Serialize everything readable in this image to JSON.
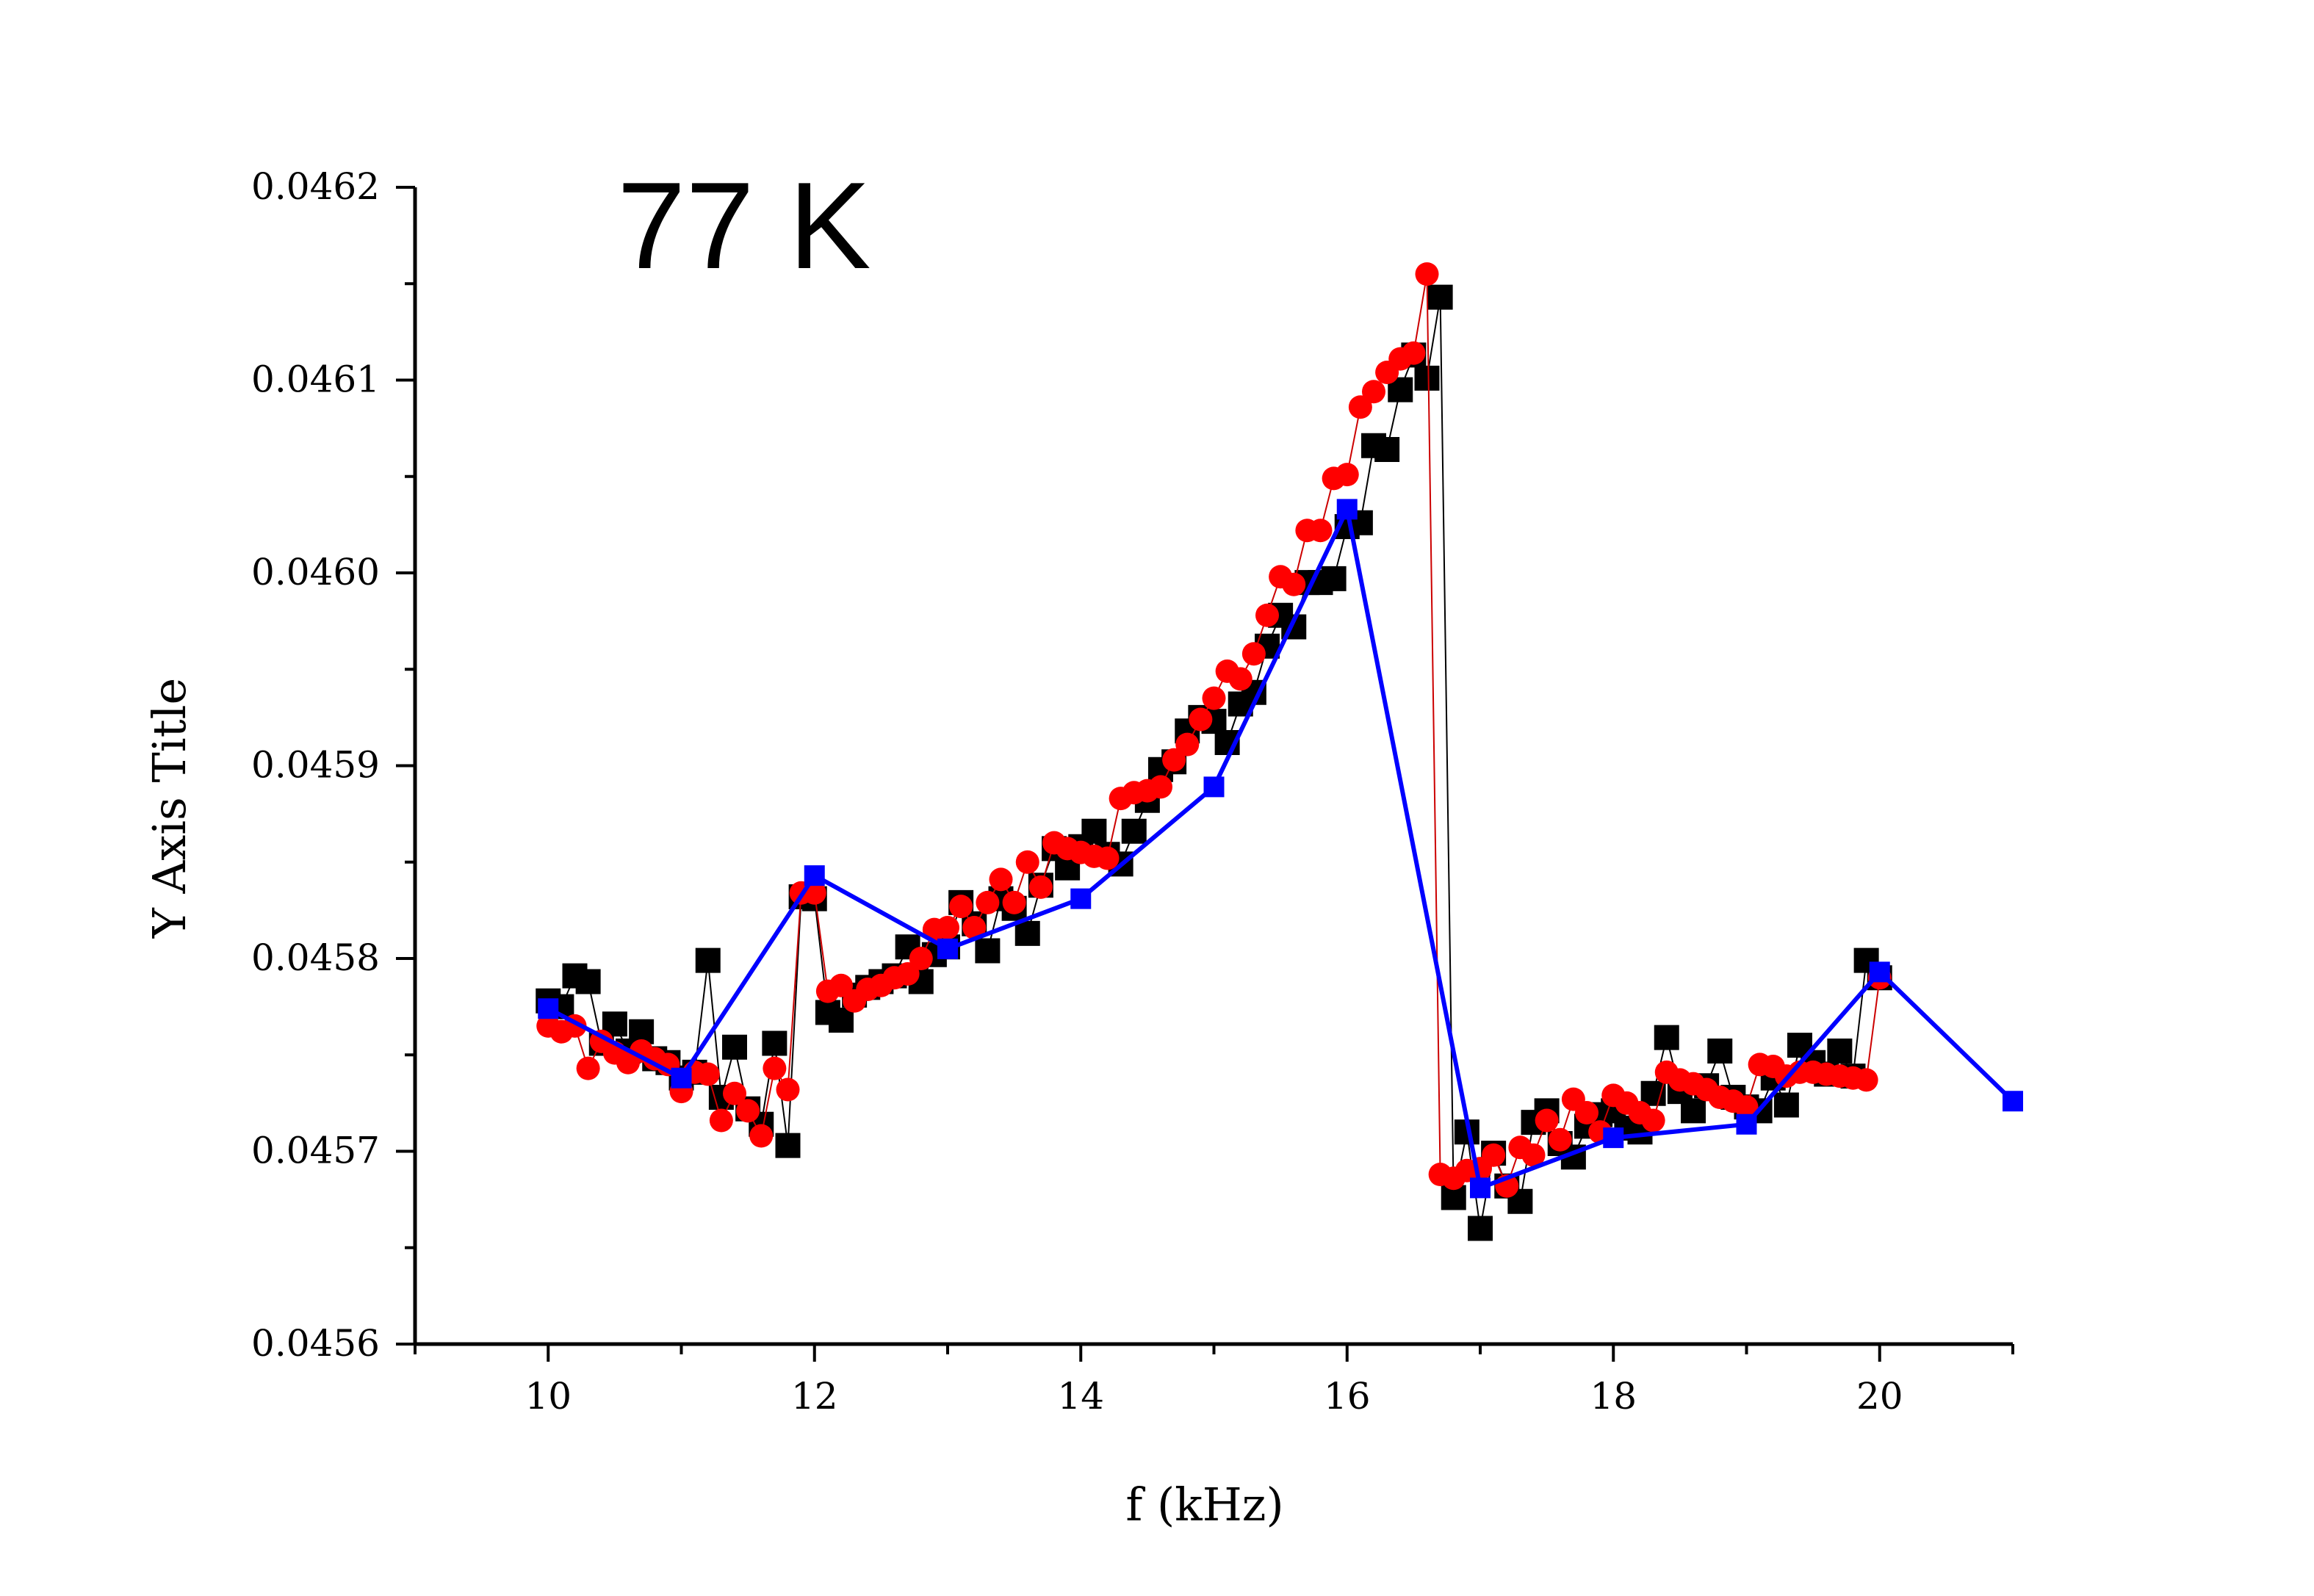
{
  "chart_data": {
    "type": "scatter",
    "title": "",
    "annotation": "77 K",
    "xlabel": "f (kHz)",
    "ylabel": "Y Axis Title",
    "xlim": [
      9,
      21
    ],
    "ylim": [
      0.0456,
      0.0462
    ],
    "x_ticks": [
      10,
      12,
      14,
      16,
      18,
      20
    ],
    "x_tick_labels": [
      "10",
      "12",
      "14",
      "16",
      "18",
      "20"
    ],
    "y_ticks": [
      0.0456,
      0.0457,
      0.0458,
      0.0459,
      0.046,
      0.0461,
      0.0462
    ],
    "y_tick_labels": [
      "0.0456",
      "0.0457",
      "0.0458",
      "0.0459",
      "0.0460",
      "0.0461",
      "0.0462"
    ],
    "grid": false,
    "legend": "none",
    "series": [
      {
        "marker": "square",
        "color": "#000000",
        "line_color": "#000000",
        "line_width": 2,
        "x": [
          10.0,
          10.1,
          10.2,
          10.3,
          10.4,
          10.5,
          10.6,
          10.7,
          10.8,
          10.9,
          11.0,
          11.1,
          11.2,
          11.3,
          11.4,
          11.5,
          11.6,
          11.7,
          11.8,
          11.9,
          12.0,
          12.1,
          12.2,
          12.3,
          12.4,
          12.5,
          12.6,
          12.7,
          12.8,
          12.9,
          13.0,
          13.1,
          13.2,
          13.3,
          13.4,
          13.5,
          13.6,
          13.7,
          13.8,
          13.9,
          14.0,
          14.1,
          14.2,
          14.3,
          14.4,
          14.5,
          14.6,
          14.7,
          14.8,
          14.9,
          15.0,
          15.1,
          15.2,
          15.3,
          15.4,
          15.5,
          15.6,
          15.7,
          15.8,
          15.9,
          16.0,
          16.1,
          16.2,
          16.3,
          16.4,
          16.5,
          16.6,
          16.7,
          16.8,
          16.9,
          17.0,
          17.1,
          17.2,
          17.3,
          17.4,
          17.5,
          17.6,
          17.7,
          17.8,
          17.9,
          18.0,
          18.1,
          18.2,
          18.3,
          18.4,
          18.5,
          18.6,
          18.7,
          18.8,
          18.9,
          19.0,
          19.1,
          19.2,
          19.3,
          19.4,
          19.5,
          19.6,
          19.7,
          19.8,
          19.9,
          20.0
        ],
        "y": [
          0.045778,
          0.045775,
          0.045791,
          0.045788,
          0.045756,
          0.045766,
          0.045752,
          0.045762,
          0.045748,
          0.045746,
          0.045738,
          0.045741,
          0.045799,
          0.045728,
          0.045754,
          0.045722,
          0.045714,
          0.045756,
          0.045703,
          0.045832,
          0.045831,
          0.045772,
          0.045768,
          0.045781,
          0.045785,
          0.045788,
          0.045791,
          0.045806,
          0.045788,
          0.045802,
          0.045806,
          0.045829,
          0.045818,
          0.045804,
          0.045831,
          0.045826,
          0.045813,
          0.045838,
          0.045857,
          0.045847,
          0.045858,
          0.045866,
          0.045854,
          0.045849,
          0.045866,
          0.045882,
          0.045898,
          0.045902,
          0.045918,
          0.045925,
          0.045923,
          0.045912,
          0.045932,
          0.045938,
          0.045962,
          0.045978,
          0.045972,
          0.045995,
          0.045995,
          0.045997,
          0.046024,
          0.046026,
          0.046066,
          0.046064,
          0.046095,
          0.046113,
          0.046101,
          0.046143,
          0.045676,
          0.04571,
          0.04566,
          0.045699,
          0.045682,
          0.045674,
          0.045715,
          0.045721,
          0.045704,
          0.045697,
          0.045713,
          0.045719,
          0.045721,
          0.045712,
          0.04571,
          0.04573,
          0.045759,
          0.045731,
          0.045721,
          0.045734,
          0.045752,
          0.045728,
          0.045723,
          0.045721,
          0.045738,
          0.045724,
          0.045755,
          0.045746,
          0.04574,
          0.045752,
          0.045739,
          0.045799,
          0.04579
        ]
      },
      {
        "marker": "circle",
        "color": "#ff0000",
        "line_color": "#cc0000",
        "line_width": 2,
        "x": [
          10.0,
          10.1,
          10.2,
          10.3,
          10.4,
          10.5,
          10.6,
          10.7,
          10.8,
          10.9,
          11.0,
          11.1,
          11.2,
          11.3,
          11.4,
          11.5,
          11.6,
          11.7,
          11.8,
          11.9,
          12.0,
          12.1,
          12.2,
          12.3,
          12.4,
          12.5,
          12.6,
          12.7,
          12.8,
          12.9,
          13.0,
          13.1,
          13.2,
          13.3,
          13.4,
          13.5,
          13.6,
          13.7,
          13.8,
          13.9,
          14.0,
          14.1,
          14.2,
          14.3,
          14.4,
          14.5,
          14.6,
          14.7,
          14.8,
          14.9,
          15.0,
          15.1,
          15.2,
          15.3,
          15.4,
          15.5,
          15.6,
          15.7,
          15.8,
          15.9,
          16.0,
          16.1,
          16.2,
          16.3,
          16.4,
          16.5,
          16.6,
          16.7,
          16.8,
          16.9,
          17.0,
          17.1,
          17.2,
          17.3,
          17.4,
          17.5,
          17.6,
          17.7,
          17.8,
          17.9,
          18.0,
          18.1,
          18.2,
          18.3,
          18.4,
          18.5,
          18.6,
          18.7,
          18.8,
          18.9,
          19.0,
          19.1,
          19.2,
          19.3,
          19.4,
          19.5,
          19.6,
          19.7,
          19.8,
          19.9,
          20.0
        ],
        "y": [
          0.045765,
          0.045762,
          0.045765,
          0.045743,
          0.045757,
          0.045751,
          0.045746,
          0.045752,
          0.045748,
          0.045745,
          0.045731,
          0.045741,
          0.04574,
          0.045716,
          0.04573,
          0.045721,
          0.045708,
          0.045743,
          0.045732,
          0.045834,
          0.045834,
          0.045783,
          0.045786,
          0.045778,
          0.045784,
          0.045786,
          0.04579,
          0.045792,
          0.0458,
          0.045815,
          0.045816,
          0.045827,
          0.045816,
          0.045829,
          0.045841,
          0.045829,
          0.04585,
          0.045837,
          0.04586,
          0.045857,
          0.045855,
          0.045853,
          0.045852,
          0.045883,
          0.045886,
          0.045887,
          0.045889,
          0.045903,
          0.045911,
          0.045924,
          0.045935,
          0.045949,
          0.045945,
          0.045958,
          0.045978,
          0.045998,
          0.045994,
          0.046022,
          0.046022,
          0.046049,
          0.046051,
          0.046086,
          0.046094,
          0.046104,
          0.046111,
          0.046114,
          0.046155,
          0.045688,
          0.045686,
          0.04569,
          0.045691,
          0.045698,
          0.045682,
          0.045702,
          0.045698,
          0.045716,
          0.045706,
          0.045727,
          0.04572,
          0.04571,
          0.045729,
          0.045725,
          0.04572,
          0.045716,
          0.045741,
          0.045737,
          0.045735,
          0.045732,
          0.045728,
          0.045726,
          0.045723,
          0.045745,
          0.045744,
          0.045739,
          0.045741,
          0.045741,
          0.04574,
          0.045739,
          0.045738,
          0.045737,
          0.04579
        ]
      },
      {
        "marker": "square",
        "color": "#0000ff",
        "line_color": "#0000ff",
        "line_width": 6,
        "x": [
          10,
          11,
          12,
          13,
          14,
          15,
          16,
          17,
          18,
          19,
          20,
          21
        ],
        "y": [
          0.045774,
          0.045738,
          0.045843,
          0.045805,
          0.045831,
          0.045889,
          0.046033,
          0.045681,
          0.045707,
          0.045714,
          0.045793,
          0.045726
        ]
      }
    ]
  }
}
